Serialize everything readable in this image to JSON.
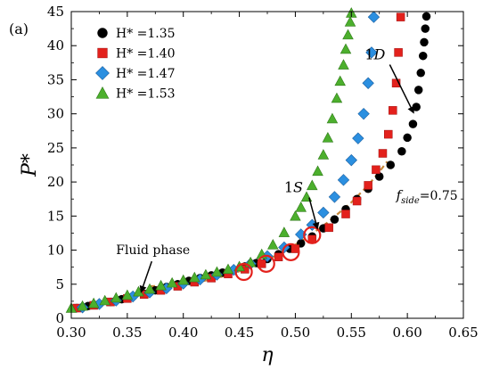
{
  "chart_data": {
    "type": "scatter",
    "panel_label": "(a)",
    "xlabel": "η",
    "ylabel": "P*",
    "xlim": [
      0.3,
      0.65
    ],
    "ylim": [
      0,
      45
    ],
    "xticks": [
      0.3,
      0.35,
      0.4,
      0.45,
      0.5,
      0.55,
      0.6,
      0.65
    ],
    "yticks": [
      0,
      5,
      10,
      15,
      20,
      25,
      30,
      35,
      40,
      45
    ],
    "xtick_labels": [
      "0.30",
      "0.35",
      "0.40",
      "0.45",
      "0.50",
      "0.55",
      "0.60",
      "0.65"
    ],
    "ytick_labels": [
      "0",
      "5",
      "10",
      "15",
      "20",
      "25",
      "30",
      "35",
      "40",
      "45"
    ],
    "grid": false,
    "legend_position": "top-left",
    "legend": [
      {
        "label": "H* =1.35",
        "marker": "circle",
        "color": "#000000"
      },
      {
        "label": "H* =1.40",
        "marker": "square",
        "color": "#e3211c"
      },
      {
        "label": "H* =1.47",
        "marker": "diamond",
        "color": "#2b8fe0"
      },
      {
        "label": "H* =1.53",
        "marker": "triangle",
        "color": "#4caf2d"
      }
    ],
    "series": [
      {
        "name": "H* =1.35",
        "marker": "circle",
        "color": "#000000",
        "x": [
          0.305,
          0.315,
          0.325,
          0.335,
          0.345,
          0.355,
          0.365,
          0.375,
          0.385,
          0.395,
          0.405,
          0.415,
          0.425,
          0.435,
          0.445,
          0.455,
          0.465,
          0.475,
          0.485,
          0.495,
          0.505,
          0.515,
          0.525,
          0.535,
          0.545,
          0.555,
          0.565,
          0.575,
          0.585,
          0.595,
          0.6,
          0.605,
          0.608,
          0.61,
          0.612,
          0.614,
          0.615,
          0.616,
          0.617
        ],
        "y": [
          1.5,
          1.8,
          2.1,
          2.4,
          2.8,
          3.2,
          3.6,
          4.1,
          4.6,
          5.0,
          5.5,
          5.9,
          6.3,
          6.7,
          7.1,
          7.6,
          8.1,
          8.7,
          9.4,
          10.2,
          11.0,
          12.0,
          13.2,
          14.5,
          16.0,
          17.5,
          19.0,
          20.8,
          22.5,
          24.5,
          26.5,
          28.5,
          31.0,
          33.5,
          36.0,
          38.5,
          40.5,
          42.5,
          44.3
        ]
      },
      {
        "name": "H* =1.40",
        "marker": "square",
        "color": "#e3211c",
        "x": [
          0.305,
          0.32,
          0.335,
          0.35,
          0.365,
          0.38,
          0.395,
          0.41,
          0.425,
          0.44,
          0.455,
          0.47,
          0.485,
          0.5,
          0.515,
          0.53,
          0.545,
          0.555,
          0.565,
          0.572,
          0.578,
          0.583,
          0.587,
          0.59,
          0.592,
          0.594
        ],
        "y": [
          1.5,
          1.9,
          2.4,
          2.9,
          3.5,
          4.1,
          4.7,
          5.3,
          5.9,
          6.5,
          7.2,
          8.0,
          9.0,
          10.2,
          11.6,
          13.3,
          15.3,
          17.2,
          19.5,
          21.8,
          24.2,
          27.0,
          30.5,
          34.5,
          39.0,
          44.2
        ]
      },
      {
        "name": "H* =1.47",
        "marker": "diamond",
        "color": "#2b8fe0",
        "x": [
          0.31,
          0.325,
          0.34,
          0.355,
          0.37,
          0.385,
          0.4,
          0.415,
          0.43,
          0.445,
          0.46,
          0.475,
          0.49,
          0.505,
          0.515,
          0.525,
          0.535,
          0.543,
          0.55,
          0.556,
          0.561,
          0.565,
          0.568,
          0.57
        ],
        "y": [
          1.6,
          2.1,
          2.6,
          3.2,
          3.8,
          4.4,
          5.1,
          5.7,
          6.4,
          7.1,
          8.0,
          9.1,
          10.4,
          12.3,
          13.7,
          15.5,
          17.8,
          20.3,
          23.2,
          26.4,
          30.0,
          34.5,
          39.0,
          44.2
        ]
      },
      {
        "name": "H* =1.53",
        "marker": "triangle",
        "color": "#4caf2d",
        "x": [
          0.3,
          0.31,
          0.32,
          0.33,
          0.34,
          0.35,
          0.36,
          0.37,
          0.38,
          0.39,
          0.4,
          0.41,
          0.42,
          0.43,
          0.44,
          0.45,
          0.46,
          0.47,
          0.48,
          0.49,
          0.5,
          0.505,
          0.51,
          0.515,
          0.52,
          0.525,
          0.529,
          0.533,
          0.537,
          0.54,
          0.543,
          0.545,
          0.547,
          0.549,
          0.55
        ],
        "y": [
          1.5,
          1.8,
          2.2,
          2.6,
          3.0,
          3.4,
          3.9,
          4.3,
          4.8,
          5.2,
          5.6,
          6.0,
          6.4,
          6.8,
          7.2,
          7.6,
          8.2,
          9.4,
          10.8,
          12.6,
          15.0,
          16.3,
          17.8,
          19.5,
          21.6,
          24.0,
          26.5,
          29.3,
          32.3,
          34.8,
          37.2,
          39.5,
          41.6,
          43.5,
          44.8
        ]
      }
    ],
    "dashed_curve": {
      "label": "f_side=0.75",
      "color": "#c8883a",
      "x": [
        0.37,
        0.39,
        0.41,
        0.43,
        0.45,
        0.47,
        0.49,
        0.51,
        0.53,
        0.55,
        0.565,
        0.575,
        0.582
      ],
      "y": [
        4.7,
        4.8,
        5.2,
        5.9,
        6.9,
        8.2,
        9.8,
        11.8,
        14.2,
        17.0,
        19.5,
        21.5,
        23.0
      ]
    },
    "highlight_circles": {
      "color": "#e3211c",
      "points": [
        {
          "x": 0.454,
          "y": 6.8
        },
        {
          "x": 0.474,
          "y": 8.0
        },
        {
          "x": 0.496,
          "y": 9.7
        },
        {
          "x": 0.515,
          "y": 12.2
        }
      ]
    },
    "annotations": [
      {
        "text": "Fluid phase",
        "x": 0.34,
        "y": 9.4,
        "arrow_to": [
          0.362,
          3.7
        ]
      },
      {
        "text": "1",
        "script": "S",
        "x": 0.49,
        "y": 18.5,
        "arrow_to": [
          0.52,
          13.0
        ]
      },
      {
        "text": "1",
        "script": "D",
        "x": 0.562,
        "y": 38.0,
        "arrow_to": [
          0.606,
          30.0
        ]
      },
      {
        "text": "f",
        "subscript": "side",
        "suffix": "=0.75",
        "x": 0.59,
        "y": 17.4
      }
    ]
  }
}
